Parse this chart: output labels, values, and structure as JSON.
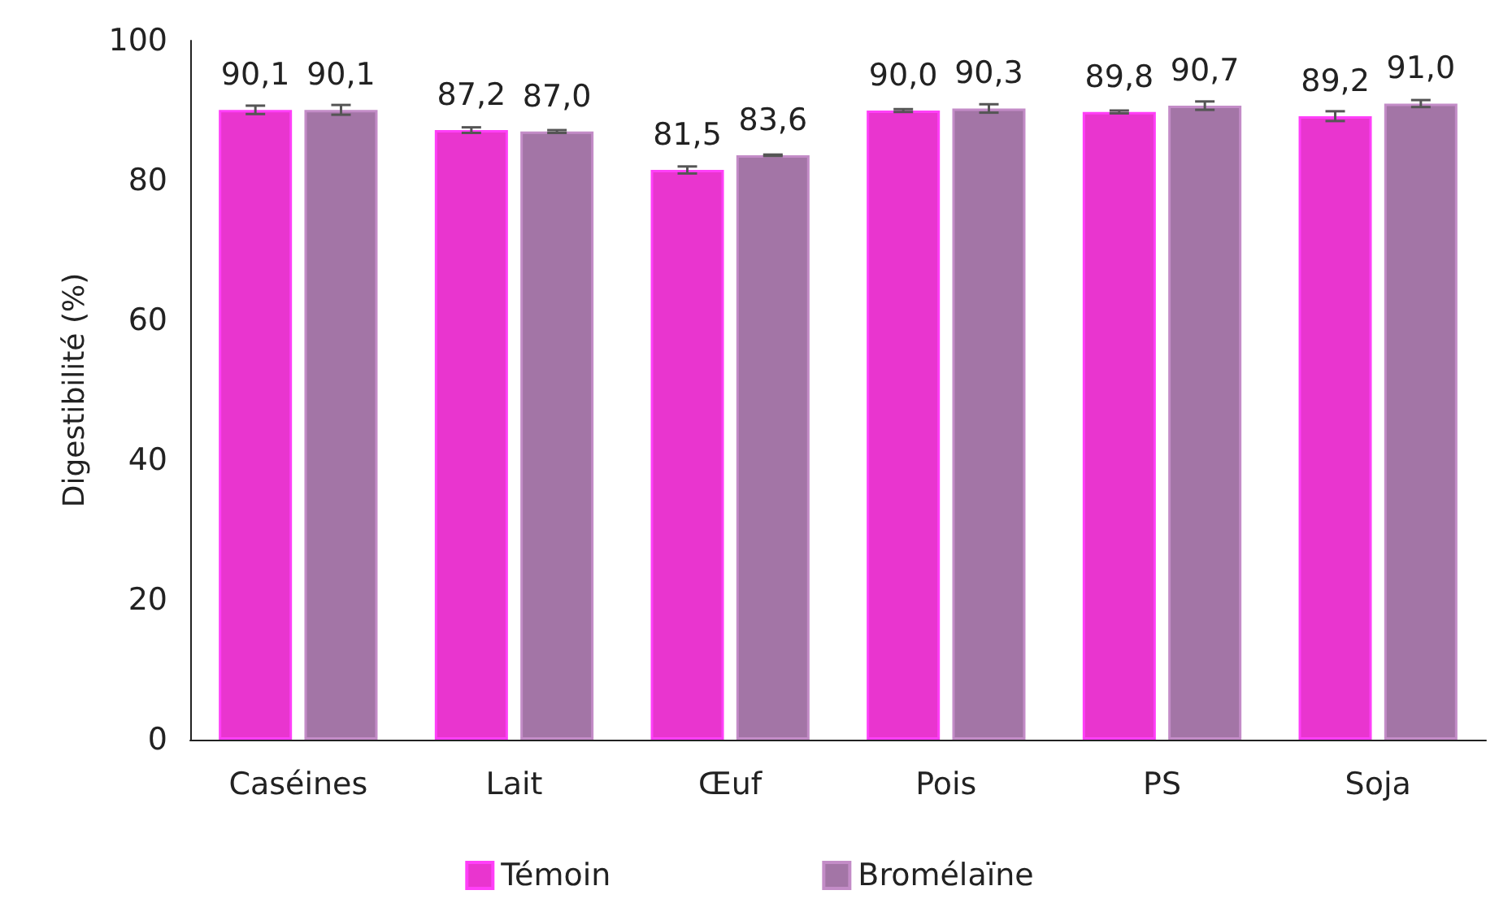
{
  "chart_data": {
    "type": "bar",
    "ylabel": "Digestibilité (%)",
    "categories": [
      "Caséines",
      "Lait",
      "Œuf",
      "Pois",
      "PS",
      "Soja"
    ],
    "series": [
      {
        "name": "Témoin",
        "color": "#e935cf",
        "values": [
          90.1,
          87.2,
          81.5,
          90.0,
          89.8,
          89.2
        ],
        "value_labels": [
          "90,1",
          "87,2",
          "81,5",
          "90,0",
          "89,8",
          "89,2"
        ],
        "errors": [
          0.6,
          0.4,
          0.5,
          0.2,
          0.2,
          0.7
        ]
      },
      {
        "name": "Bromélaïne",
        "color": "#a375a6",
        "values": [
          90.1,
          87.0,
          83.6,
          90.3,
          90.7,
          91.0
        ],
        "value_labels": [
          "90,1",
          "87,0",
          "83,6",
          "90,3",
          "90,7",
          "91,0"
        ],
        "errors": [
          0.7,
          0.2,
          0.1,
          0.6,
          0.6,
          0.5
        ]
      }
    ],
    "ylim": [
      0,
      100
    ],
    "yticks": [
      0,
      20,
      40,
      60,
      80,
      100
    ],
    "grid": false,
    "legend": "bottom"
  }
}
